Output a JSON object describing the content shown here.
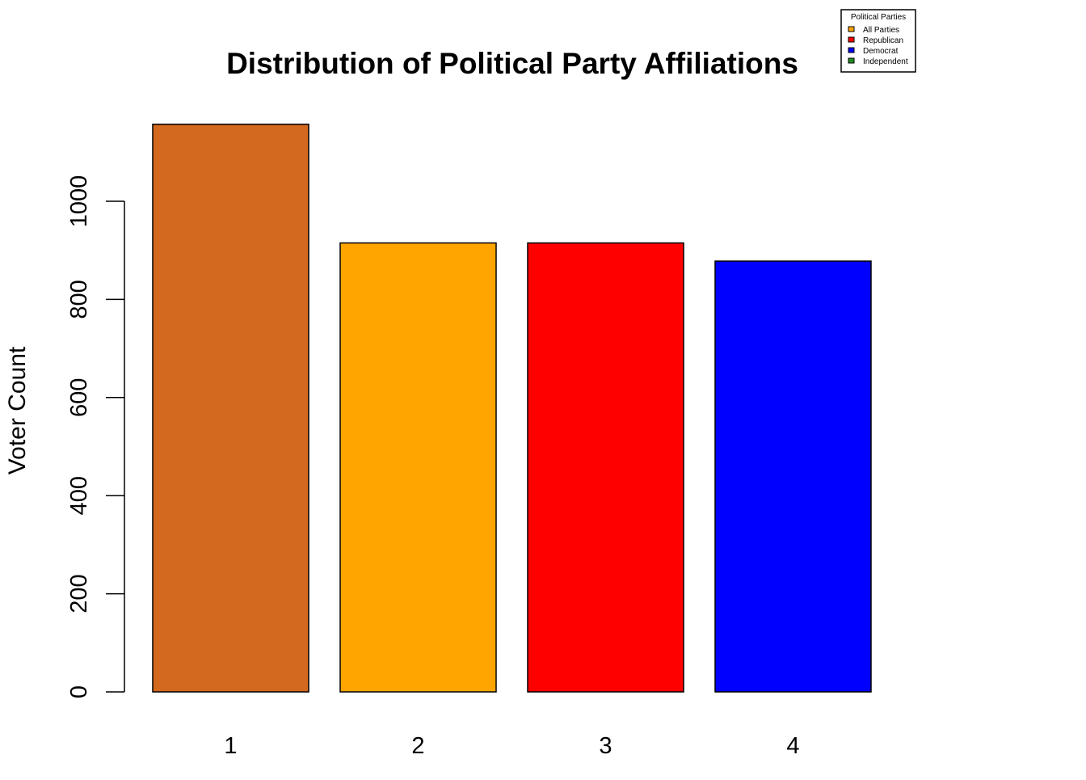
{
  "chart_data": {
    "type": "bar",
    "title": "Distribution of Political Party Affiliations",
    "xlabel": "",
    "ylabel": "Voter Count",
    "categories": [
      "1",
      "2",
      "3",
      "4"
    ],
    "values": [
      1157,
      915,
      915,
      878
    ],
    "bar_colors": [
      "#D2691E",
      "#FFA500",
      "#FF0000",
      "#0000FF"
    ],
    "ylim": [
      0,
      1200
    ],
    "yticks": [
      0,
      200,
      400,
      600,
      800,
      1000
    ],
    "grid": false,
    "legend": {
      "title": "Political Parties",
      "placement": "top-right",
      "entries": [
        {
          "label": "All Parties",
          "color": "#FFA500"
        },
        {
          "label": "Republican",
          "color": "#FF0000"
        },
        {
          "label": "Democrat",
          "color": "#0000FF"
        },
        {
          "label": "Independent",
          "color": "#228B22"
        }
      ]
    }
  }
}
